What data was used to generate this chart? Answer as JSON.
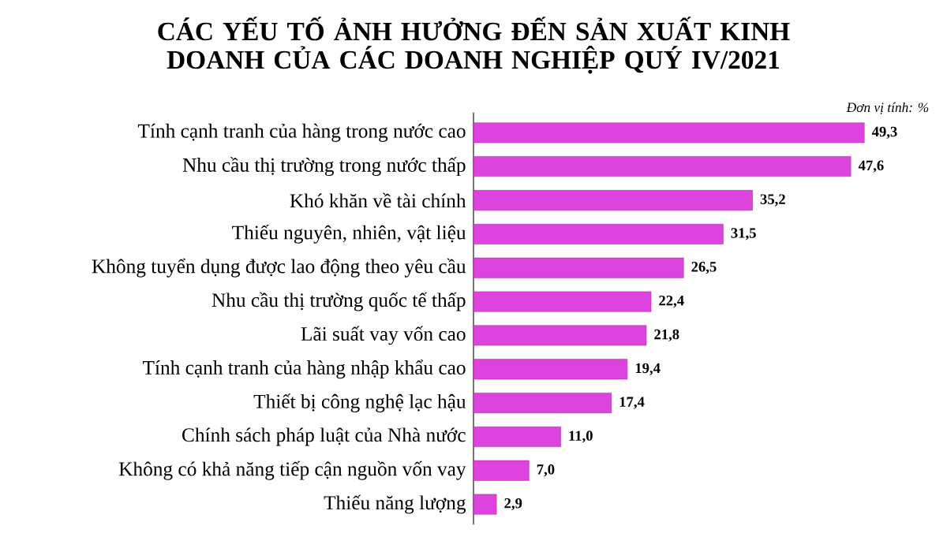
{
  "chart_data": {
    "type": "bar",
    "orientation": "horizontal",
    "title": "CÁC YẾU TỐ ẢNH HƯỞNG ĐẾN SẢN XUẤT KINH DOANH CỦA CÁC DOANH NGHIỆP QUÝ IV/2021",
    "annotations": [
      "*Đơn vị tính: %*"
    ],
    "categories": [
      "Tính cạnh tranh của hàng trong nước cao",
      "Nhu cầu thị trường trong nước thấp",
      "Khó khăn về tài chính",
      "Thiếu nguyên, nhiên, vật liệu",
      "Không tuyển dụng được lao động theo yêu cầu",
      "Nhu cầu thị trường quốc tế thấp",
      "Lãi suất vay vốn cao",
      "Tính cạnh tranh của hàng nhập khẩu cao",
      "Thiết bị công nghệ lạc hậu",
      "Chính sách pháp luật của Nhà nước",
      "Không có khả năng tiếp cận nguồn vốn vay",
      "Thiếu năng lượng"
    ],
    "values": [
      49.3,
      47.6,
      35.2,
      31.5,
      26.5,
      22.4,
      21.8,
      19.4,
      17.4,
      11.0,
      7.0,
      2.9
    ],
    "value_labels": [
      "49,3",
      "47,6",
      "35,2",
      "31,5",
      "26,5",
      "22,4",
      "21,8",
      "19,4",
      "17,4",
      "11,0",
      "7,0",
      "2,9"
    ],
    "color": "#dd44dd"
  }
}
